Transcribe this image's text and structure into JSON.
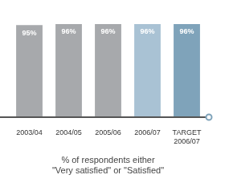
{
  "chart_data": {
    "type": "bar",
    "categories": [
      "2003/04",
      "2004/05",
      "2005/06",
      "2006/07",
      "TARGET 2006/07"
    ],
    "values": [
      95,
      96,
      96,
      96,
      96
    ],
    "value_labels": [
      "95%",
      "96%",
      "96%",
      "96%",
      "96%"
    ],
    "colors": [
      "#a7a9ac",
      "#a7a9ac",
      "#a7a9ac",
      "#a9c2d4",
      "#7fa3ba"
    ],
    "xlabel": [
      "% of respondents either",
      "\"Very satisfied\" or \"Satisfied\""
    ],
    "ylim": [
      0,
      96
    ],
    "grid": false,
    "data_labels": true,
    "tick_labels": "x"
  }
}
